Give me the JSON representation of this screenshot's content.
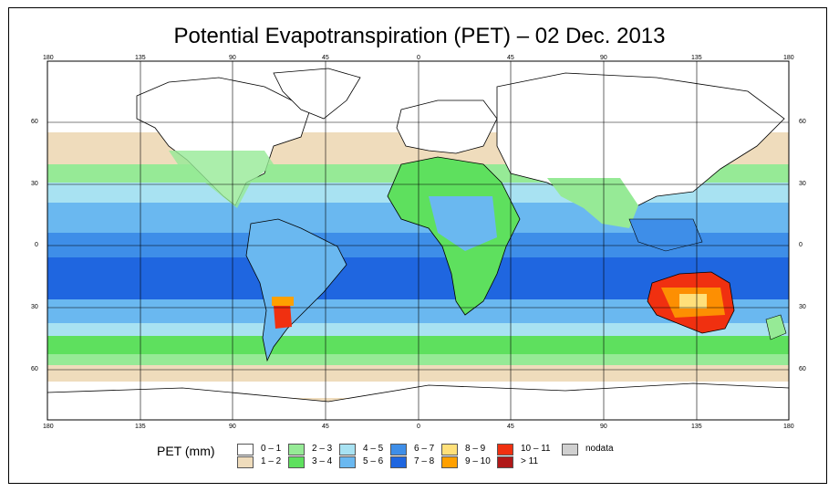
{
  "title": "Potential Evapotranspiration (PET) – 02 Dec. 2013",
  "axes": {
    "top_ticks": [
      "180",
      "135",
      "90",
      "45",
      "0",
      "45",
      "90",
      "135",
      "180"
    ],
    "bottom_ticks": [
      "180",
      "135",
      "90",
      "45",
      "0",
      "45",
      "90",
      "135",
      "180"
    ],
    "left_ticks": [
      "60",
      "30",
      "0",
      "30",
      "60"
    ],
    "right_ticks": [
      "60",
      "30",
      "0",
      "30",
      "60"
    ]
  },
  "legend": {
    "title": "PET (mm)",
    "items": [
      {
        "label": "0 – 1",
        "color": "#ffffff"
      },
      {
        "label": "1 – 2",
        "color": "#efdcbc"
      },
      {
        "label": "2 – 3",
        "color": "#96ea96"
      },
      {
        "label": "3 – 4",
        "color": "#5ee05e"
      },
      {
        "label": "4 – 5",
        "color": "#a8e2f2"
      },
      {
        "label": "5 – 6",
        "color": "#6ab8f0"
      },
      {
        "label": "6 – 7",
        "color": "#3e8ee8"
      },
      {
        "label": "7 – 8",
        "color": "#1f66e0"
      },
      {
        "label": "8 – 9",
        "color": "#ffe07a"
      },
      {
        "label": "9 – 10",
        "color": "#ffa000"
      },
      {
        "label": "10 – 11",
        "color": "#f03010"
      },
      {
        "label": "> 11",
        "color": "#b01818"
      },
      {
        "label": "nodata",
        "color": "#d0d0d0"
      }
    ]
  }
}
